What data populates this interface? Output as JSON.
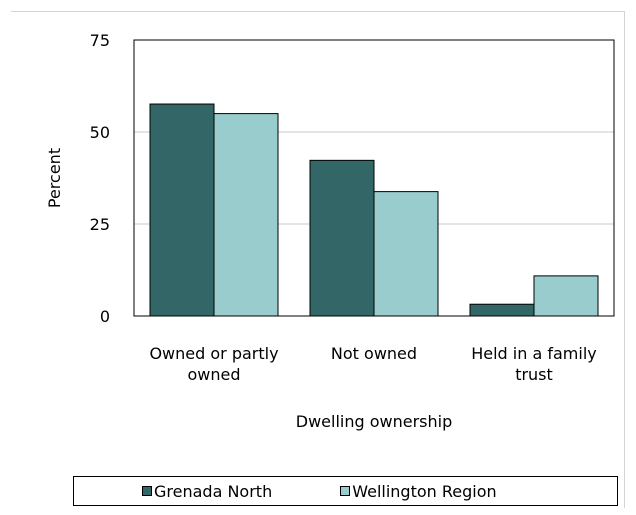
{
  "chart_data": {
    "type": "bar",
    "title": "",
    "xlabel": "Dwelling ownership",
    "ylabel": "Percent",
    "ylim": [
      0,
      75
    ],
    "yticks": [
      0,
      25,
      50,
      75
    ],
    "grid": true,
    "legend_position": "bottom",
    "categories": [
      [
        "Owned or partly",
        "owned"
      ],
      [
        "Not owned"
      ],
      [
        "Held in a family",
        "trust"
      ]
    ],
    "series": [
      {
        "name": "Grenada North",
        "color": "#336666",
        "values": [
          57.6,
          42.3,
          3.2
        ]
      },
      {
        "name": "Wellington Region",
        "color": "#99cccc",
        "values": [
          55.0,
          33.8,
          10.9
        ]
      }
    ]
  }
}
